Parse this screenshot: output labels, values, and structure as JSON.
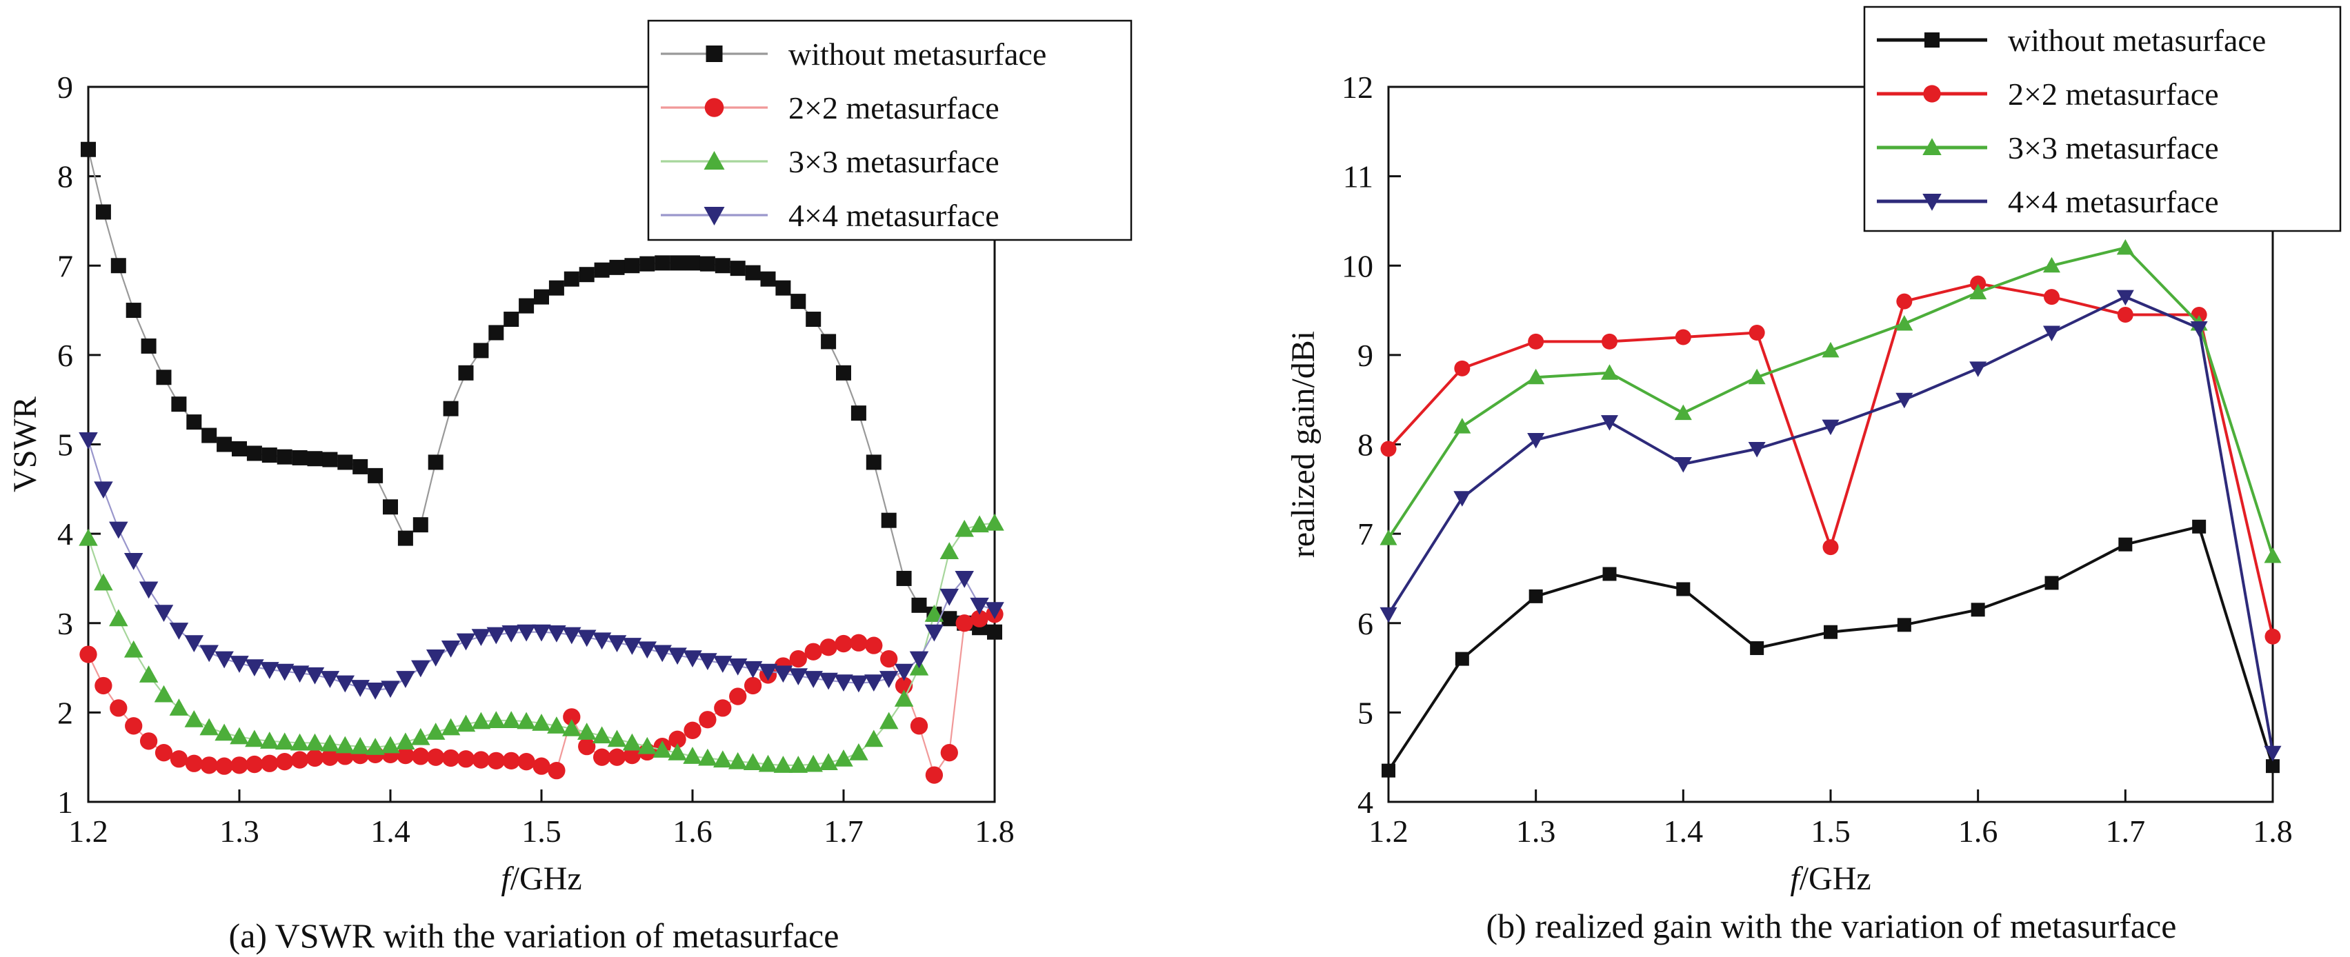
{
  "chart_data": [
    {
      "type": "line",
      "caption": "(a) VSWR with the variation of metasurface",
      "xlabel_italic": "f",
      "xlabel_rest": "/GHz",
      "ylabel": "VSWR",
      "xlim": [
        1.2,
        1.8
      ],
      "ylim": [
        1,
        9
      ],
      "xticks": [
        1.2,
        1.3,
        1.4,
        1.5,
        1.6,
        1.7,
        1.8
      ],
      "yticks": [
        1,
        2,
        3,
        4,
        5,
        6,
        7,
        8,
        9
      ],
      "xtick_labels": [
        "1.2",
        "1.3",
        "1.4",
        "1.5",
        "1.6",
        "1.7",
        "1.8"
      ],
      "ytick_labels": [
        "1",
        "2",
        "3",
        "4",
        "5",
        "6",
        "7",
        "8",
        "9"
      ],
      "grid": false,
      "legend_position": "top-right",
      "series": [
        {
          "name": "without metasurface",
          "color": "#111111",
          "line_color": "#999999",
          "marker": "square",
          "x": [
            1.2,
            1.21,
            1.22,
            1.23,
            1.24,
            1.25,
            1.26,
            1.27,
            1.28,
            1.29,
            1.3,
            1.31,
            1.32,
            1.33,
            1.34,
            1.35,
            1.36,
            1.37,
            1.38,
            1.39,
            1.4,
            1.41,
            1.42,
            1.43,
            1.44,
            1.45,
            1.46,
            1.47,
            1.48,
            1.49,
            1.5,
            1.51,
            1.52,
            1.53,
            1.54,
            1.55,
            1.56,
            1.57,
            1.58,
            1.59,
            1.6,
            1.61,
            1.62,
            1.63,
            1.64,
            1.65,
            1.66,
            1.67,
            1.68,
            1.69,
            1.7,
            1.71,
            1.72,
            1.73,
            1.74,
            1.75,
            1.76,
            1.77,
            1.78,
            1.79,
            1.8
          ],
          "y": [
            8.3,
            7.6,
            7.0,
            6.5,
            6.1,
            5.75,
            5.45,
            5.25,
            5.1,
            5.0,
            4.95,
            4.9,
            4.88,
            4.86,
            4.85,
            4.84,
            4.83,
            4.8,
            4.75,
            4.65,
            4.3,
            3.95,
            4.1,
            4.8,
            5.4,
            5.8,
            6.05,
            6.25,
            6.4,
            6.55,
            6.65,
            6.75,
            6.85,
            6.9,
            6.95,
            6.98,
            7.0,
            7.02,
            7.03,
            7.03,
            7.03,
            7.02,
            7.0,
            6.97,
            6.92,
            6.85,
            6.75,
            6.6,
            6.4,
            6.15,
            5.8,
            5.35,
            4.8,
            4.15,
            3.5,
            3.2,
            3.1,
            3.05,
            3.0,
            2.95,
            2.9
          ]
        },
        {
          "name": "2×2 metasurface",
          "color": "#e31e24",
          "line_color": "#f19999",
          "marker": "circle",
          "x": [
            1.2,
            1.21,
            1.22,
            1.23,
            1.24,
            1.25,
            1.26,
            1.27,
            1.28,
            1.29,
            1.3,
            1.31,
            1.32,
            1.33,
            1.34,
            1.35,
            1.36,
            1.37,
            1.38,
            1.39,
            1.4,
            1.41,
            1.42,
            1.43,
            1.44,
            1.45,
            1.46,
            1.47,
            1.48,
            1.49,
            1.5,
            1.51,
            1.52,
            1.53,
            1.54,
            1.55,
            1.56,
            1.57,
            1.58,
            1.59,
            1.6,
            1.61,
            1.62,
            1.63,
            1.64,
            1.65,
            1.66,
            1.67,
            1.68,
            1.69,
            1.7,
            1.71,
            1.72,
            1.73,
            1.74,
            1.75,
            1.76,
            1.77,
            1.78,
            1.79,
            1.8
          ],
          "y": [
            2.65,
            2.3,
            2.05,
            1.85,
            1.68,
            1.55,
            1.48,
            1.43,
            1.41,
            1.4,
            1.41,
            1.42,
            1.43,
            1.45,
            1.47,
            1.49,
            1.5,
            1.51,
            1.52,
            1.53,
            1.53,
            1.52,
            1.51,
            1.5,
            1.49,
            1.48,
            1.47,
            1.46,
            1.46,
            1.45,
            1.4,
            1.35,
            1.95,
            1.62,
            1.5,
            1.5,
            1.52,
            1.56,
            1.62,
            1.7,
            1.8,
            1.92,
            2.05,
            2.18,
            2.3,
            2.42,
            2.52,
            2.6,
            2.68,
            2.73,
            2.77,
            2.78,
            2.75,
            2.6,
            2.3,
            1.85,
            1.3,
            1.55,
            3.0,
            3.05,
            3.1
          ]
        },
        {
          "name": "3×3 metasurface",
          "color": "#4cae3a",
          "line_color": "#a7d69c",
          "marker": "triangle-up",
          "x": [
            1.2,
            1.21,
            1.22,
            1.23,
            1.24,
            1.25,
            1.26,
            1.27,
            1.28,
            1.29,
            1.3,
            1.31,
            1.32,
            1.33,
            1.34,
            1.35,
            1.36,
            1.37,
            1.38,
            1.39,
            1.4,
            1.41,
            1.42,
            1.43,
            1.44,
            1.45,
            1.46,
            1.47,
            1.48,
            1.49,
            1.5,
            1.51,
            1.52,
            1.53,
            1.54,
            1.55,
            1.56,
            1.57,
            1.58,
            1.59,
            1.6,
            1.61,
            1.62,
            1.63,
            1.64,
            1.65,
            1.66,
            1.67,
            1.68,
            1.69,
            1.7,
            1.71,
            1.72,
            1.73,
            1.74,
            1.75,
            1.76,
            1.77,
            1.78,
            1.79,
            1.8
          ],
          "y": [
            3.95,
            3.45,
            3.05,
            2.7,
            2.42,
            2.2,
            2.05,
            1.92,
            1.83,
            1.77,
            1.73,
            1.7,
            1.68,
            1.67,
            1.66,
            1.66,
            1.65,
            1.63,
            1.62,
            1.61,
            1.63,
            1.67,
            1.72,
            1.78,
            1.83,
            1.87,
            1.9,
            1.91,
            1.91,
            1.9,
            1.88,
            1.85,
            1.82,
            1.78,
            1.74,
            1.7,
            1.66,
            1.62,
            1.58,
            1.55,
            1.51,
            1.49,
            1.47,
            1.45,
            1.44,
            1.42,
            1.41,
            1.41,
            1.42,
            1.44,
            1.48,
            1.55,
            1.7,
            1.9,
            2.15,
            2.5,
            3.1,
            3.8,
            4.05,
            4.1,
            4.12
          ]
        },
        {
          "name": "4×4 metasurface",
          "color": "#2d2a7a",
          "line_color": "#9a97cc",
          "marker": "triangle-down",
          "x": [
            1.2,
            1.21,
            1.22,
            1.23,
            1.24,
            1.25,
            1.26,
            1.27,
            1.28,
            1.29,
            1.3,
            1.31,
            1.32,
            1.33,
            1.34,
            1.35,
            1.36,
            1.37,
            1.38,
            1.39,
            1.4,
            1.41,
            1.42,
            1.43,
            1.44,
            1.45,
            1.46,
            1.47,
            1.48,
            1.49,
            1.5,
            1.51,
            1.52,
            1.53,
            1.54,
            1.55,
            1.56,
            1.57,
            1.58,
            1.59,
            1.6,
            1.61,
            1.62,
            1.63,
            1.64,
            1.65,
            1.66,
            1.67,
            1.68,
            1.69,
            1.7,
            1.71,
            1.72,
            1.73,
            1.74,
            1.75,
            1.76,
            1.77,
            1.78,
            1.79,
            1.8
          ],
          "y": [
            5.05,
            4.5,
            4.05,
            3.7,
            3.38,
            3.12,
            2.92,
            2.78,
            2.67,
            2.6,
            2.55,
            2.51,
            2.48,
            2.46,
            2.44,
            2.42,
            2.38,
            2.33,
            2.28,
            2.25,
            2.27,
            2.38,
            2.5,
            2.62,
            2.72,
            2.8,
            2.85,
            2.87,
            2.89,
            2.9,
            2.9,
            2.89,
            2.87,
            2.84,
            2.81,
            2.78,
            2.75,
            2.71,
            2.67,
            2.64,
            2.61,
            2.58,
            2.55,
            2.52,
            2.49,
            2.46,
            2.44,
            2.41,
            2.38,
            2.36,
            2.34,
            2.33,
            2.34,
            2.38,
            2.46,
            2.6,
            2.9,
            3.3,
            3.5,
            3.2,
            3.15
          ]
        }
      ]
    },
    {
      "type": "line",
      "caption": "(b) realized gain with the variation of metasurface",
      "xlabel_italic": "f",
      "xlabel_rest": "/GHz",
      "ylabel": "realized gain/dBi",
      "xlim": [
        1.2,
        1.8
      ],
      "ylim": [
        4,
        12
      ],
      "xticks": [
        1.2,
        1.3,
        1.4,
        1.5,
        1.6,
        1.7,
        1.8
      ],
      "yticks": [
        4,
        5,
        6,
        7,
        8,
        9,
        10,
        11,
        12
      ],
      "xtick_labels": [
        "1.2",
        "1.3",
        "1.4",
        "1.5",
        "1.6",
        "1.7",
        "1.8"
      ],
      "ytick_labels": [
        "4",
        "5",
        "6",
        "7",
        "8",
        "9",
        "10",
        "11",
        "12"
      ],
      "grid": false,
      "legend_position": "top-right",
      "series": [
        {
          "name": "without metasurface",
          "color": "#111111",
          "line_color": "#111111",
          "marker": "square",
          "x": [
            1.2,
            1.25,
            1.3,
            1.35,
            1.4,
            1.45,
            1.5,
            1.55,
            1.6,
            1.65,
            1.7,
            1.75,
            1.8
          ],
          "y": [
            4.35,
            5.6,
            6.3,
            6.55,
            6.38,
            5.72,
            5.9,
            5.98,
            6.15,
            6.45,
            6.88,
            7.08,
            4.4
          ]
        },
        {
          "name": "2×2 metasurface",
          "color": "#e31e24",
          "line_color": "#e31e24",
          "marker": "circle",
          "x": [
            1.2,
            1.25,
            1.3,
            1.35,
            1.4,
            1.45,
            1.5,
            1.55,
            1.6,
            1.65,
            1.7,
            1.75,
            1.8
          ],
          "y": [
            7.95,
            8.85,
            9.15,
            9.15,
            9.2,
            9.25,
            6.85,
            9.6,
            9.8,
            9.65,
            9.45,
            9.45,
            5.85
          ]
        },
        {
          "name": "3×3 metasurface",
          "color": "#4cae3a",
          "line_color": "#4cae3a",
          "marker": "triangle-up",
          "x": [
            1.2,
            1.25,
            1.3,
            1.35,
            1.4,
            1.45,
            1.5,
            1.55,
            1.6,
            1.65,
            1.7,
            1.75,
            1.8
          ],
          "y": [
            6.95,
            8.2,
            8.75,
            8.8,
            8.35,
            8.75,
            9.05,
            9.35,
            9.7,
            10.0,
            10.2,
            9.35,
            6.75
          ]
        },
        {
          "name": "4×4 metasurface",
          "color": "#2d2a7a",
          "line_color": "#2d2a7a",
          "marker": "triangle-down",
          "x": [
            1.2,
            1.25,
            1.3,
            1.35,
            1.4,
            1.45,
            1.5,
            1.55,
            1.6,
            1.65,
            1.7,
            1.75,
            1.8
          ],
          "y": [
            6.1,
            7.4,
            8.05,
            8.25,
            7.78,
            7.95,
            8.2,
            8.5,
            8.85,
            9.25,
            9.65,
            9.3,
            4.55
          ]
        }
      ]
    }
  ]
}
